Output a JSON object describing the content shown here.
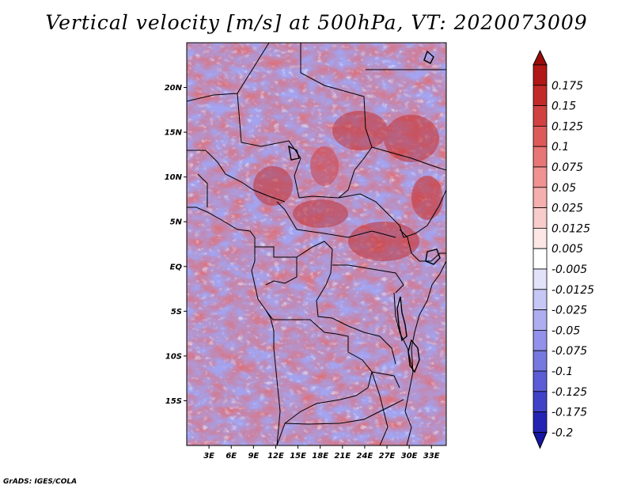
{
  "title": "Vertical velocity [m/s] at 500hPa, VT: 2020073009",
  "credit": "GrADS: IGES/COLA",
  "map": {
    "lon_range": [
      0,
      35
    ],
    "lat_range": [
      -20,
      25
    ],
    "lat_ticks": [
      {
        "value": 20,
        "label": "20N"
      },
      {
        "value": 15,
        "label": "15N"
      },
      {
        "value": 10,
        "label": "10N"
      },
      {
        "value": 5,
        "label": "5N"
      },
      {
        "value": 0,
        "label": "EQ"
      },
      {
        "value": -5,
        "label": "5S"
      },
      {
        "value": -10,
        "label": "10S"
      },
      {
        "value": -15,
        "label": "15S"
      }
    ],
    "lon_ticks": [
      {
        "value": 3,
        "label": "3E"
      },
      {
        "value": 6,
        "label": "6E"
      },
      {
        "value": 9,
        "label": "9E"
      },
      {
        "value": 12,
        "label": "12E"
      },
      {
        "value": 15,
        "label": "15E"
      },
      {
        "value": 18,
        "label": "18E"
      },
      {
        "value": 21,
        "label": "21E"
      },
      {
        "value": 24,
        "label": "24E"
      },
      {
        "value": 27,
        "label": "27E"
      },
      {
        "value": 30,
        "label": "30E"
      },
      {
        "value": 33,
        "label": "33E"
      }
    ]
  },
  "colorbar": {
    "levels": [
      {
        "label": "0.175",
        "color": "#b01717"
      },
      {
        "label": "0.15",
        "color": "#c22a2a"
      },
      {
        "label": "0.125",
        "color": "#d24141"
      },
      {
        "label": "0.1",
        "color": "#de5a5a"
      },
      {
        "label": "0.075",
        "color": "#e87676"
      },
      {
        "label": "0.05",
        "color": "#f09292"
      },
      {
        "label": "0.025",
        "color": "#f6afaf"
      },
      {
        "label": "0.0125",
        "color": "#f9cccc"
      },
      {
        "label": "0.005",
        "color": "#fce6e6"
      },
      {
        "label": "-0.005",
        "color": "#ffffff"
      },
      {
        "label": "-0.0125",
        "color": "#e2e2fb"
      },
      {
        "label": "-0.025",
        "color": "#c7c7f6"
      },
      {
        "label": "-0.05",
        "color": "#adadf0"
      },
      {
        "label": "-0.075",
        "color": "#9292ea"
      },
      {
        "label": "-0.1",
        "color": "#7777e0"
      },
      {
        "label": "-0.125",
        "color": "#5c5cd6"
      },
      {
        "label": "-0.175",
        "color": "#4141c8"
      },
      {
        "label": "-0.2",
        "color": "#2424b4"
      }
    ],
    "top_color": "#9a0c0c",
    "bottom_color": "#1616a0"
  }
}
